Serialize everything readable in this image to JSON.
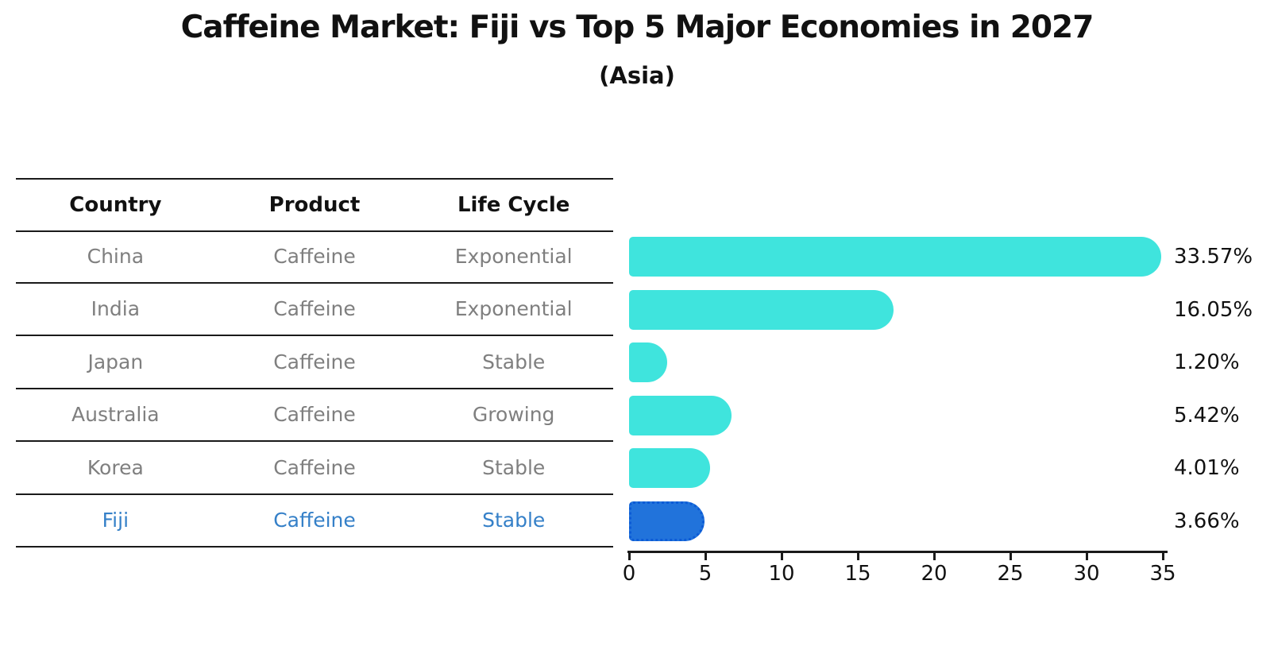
{
  "header": {
    "title": "Caffeine Market: Fiji vs Top 5 Major Economies in 2027",
    "subtitle": "(Asia)"
  },
  "table": {
    "columns": [
      "Country",
      "Product",
      "Life Cycle"
    ],
    "rows": [
      {
        "country": "China",
        "product": "Caffeine",
        "life_cycle": "Exponential",
        "highlight": false
      },
      {
        "country": "India",
        "product": "Caffeine",
        "life_cycle": "Exponential",
        "highlight": false
      },
      {
        "country": "Japan",
        "product": "Caffeine",
        "life_cycle": "Stable",
        "highlight": false
      },
      {
        "country": "Australia",
        "product": "Caffeine",
        "life_cycle": "Growing",
        "highlight": false
      },
      {
        "country": "Korea",
        "product": "Caffeine",
        "life_cycle": "Stable",
        "highlight": false
      },
      {
        "country": "Fiji",
        "product": "Caffeine",
        "life_cycle": "Stable",
        "highlight": true
      }
    ]
  },
  "chart_data": {
    "type": "bar",
    "orientation": "horizontal",
    "title": "Caffeine Market: Fiji vs Top 5 Major Economies in 2027",
    "subtitle": "(Asia)",
    "categories": [
      "China",
      "India",
      "Japan",
      "Australia",
      "Korea",
      "Fiji"
    ],
    "values": [
      33.57,
      16.05,
      1.2,
      5.42,
      4.01,
      3.66
    ],
    "value_labels": [
      "33.57%",
      "16.05%",
      "1.20%",
      "5.42%",
      "4.01%",
      "3.66%"
    ],
    "highlight_category": "Fiji",
    "x_ticks": [
      0,
      5,
      10,
      15,
      20,
      25,
      30,
      35
    ],
    "xlim": [
      0,
      35
    ],
    "grid": false,
    "legend": false,
    "colors": {
      "bar": "#3fe4dd",
      "highlight_bar": "#2173db",
      "highlight_bar_border": "#0c5bd6",
      "highlight_text": "#3580c8",
      "row_text": "#7f7f7f",
      "text": "#111111",
      "axis": "#1a1a1a"
    }
  }
}
